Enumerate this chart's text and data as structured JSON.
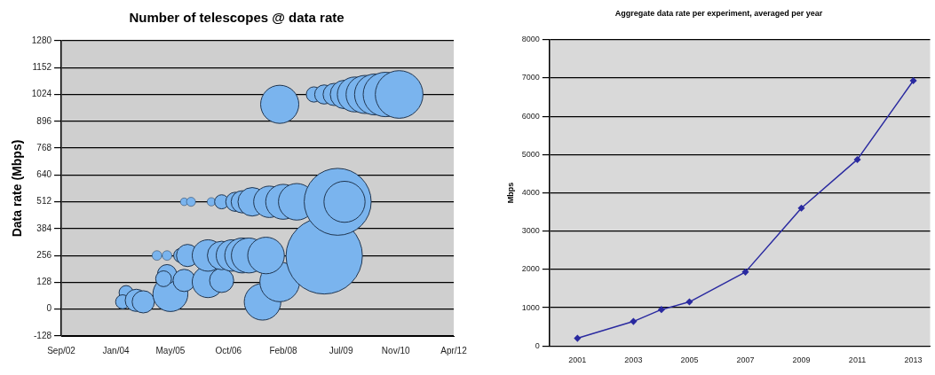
{
  "chart_data": [
    {
      "type": "bubble",
      "title": "Number of telescopes @ data rate",
      "ylabel": "Data rate (Mbps)",
      "xlim": [
        "2002-09",
        "2012-04"
      ],
      "xticks": [
        {
          "value": "2002-09",
          "label": "Sep/02"
        },
        {
          "value": "2004-01",
          "label": "Jan/04"
        },
        {
          "value": "2005-05",
          "label": "May/05"
        },
        {
          "value": "2006-10",
          "label": "Oct/06"
        },
        {
          "value": "2008-02",
          "label": "Feb/08"
        },
        {
          "value": "2009-07",
          "label": "Jul/09"
        },
        {
          "value": "2010-11",
          "label": "Nov/10"
        },
        {
          "value": "2012-04",
          "label": "Apr/12"
        }
      ],
      "ylim": [
        -128,
        1280
      ],
      "yticks": [
        -128,
        0,
        128,
        256,
        384,
        512,
        640,
        768,
        896,
        1024,
        1152,
        1280
      ],
      "grid": "y",
      "legend": false,
      "series": [
        {
          "color": "#7ab4ee",
          "x": [
            "2008-01",
            "2008-11",
            "2009-02",
            "2009-05",
            "2009-08",
            "2009-11",
            "2010-02",
            "2010-05",
            "2010-08",
            "2010-12"
          ],
          "values": [
            977,
            1024,
            1024,
            1024,
            1024,
            1024,
            1024,
            1024,
            1024,
            1024
          ],
          "sizes": [
            0.25,
            0.04,
            0.063,
            0.085,
            0.14,
            0.21,
            0.25,
            0.29,
            0.34,
            0.39
          ]
        },
        {
          "color": "#7ab4ee",
          "x": [
            "2005-09",
            "2005-11",
            "2006-05",
            "2006-08",
            "2006-12",
            "2007-02",
            "2007-05",
            "2007-10",
            "2008-02",
            "2008-06",
            "2009-06",
            "2009-08"
          ],
          "values": [
            512,
            512,
            512,
            512,
            512,
            512,
            512,
            512,
            512,
            512,
            512,
            512
          ],
          "sizes": [
            0.01,
            0.014,
            0.012,
            0.034,
            0.063,
            0.085,
            0.14,
            0.17,
            0.21,
            0.23,
            0.77,
            0.29
          ]
        },
        {
          "color": "#7ab4ee",
          "x": [
            "2005-01",
            "2005-04",
            "2005-08",
            "2005-10",
            "2006-04",
            "2006-08",
            "2006-11",
            "2007-02",
            "2007-04",
            "2007-09",
            "2009-02"
          ],
          "values": [
            256,
            256,
            256,
            256,
            256,
            256,
            256,
            256,
            256,
            256,
            254
          ],
          "sizes": [
            0.016,
            0.016,
            0.034,
            0.085,
            0.17,
            0.14,
            0.17,
            0.21,
            0.21,
            0.23,
            1
          ]
        },
        {
          "color": "#7ab4ee",
          "x": [
            "2004-04",
            "2004-03",
            "2004-07",
            "2004-09",
            "2005-05",
            "2005-04",
            "2005-03",
            "2005-09",
            "2006-04",
            "2006-08",
            "2007-08",
            "2008-01"
          ],
          "values": [
            79,
            35,
            42,
            35,
            72,
            167,
            145,
            137,
            130,
            137,
            35,
            130
          ],
          "sizes": [
            0.034,
            0.034,
            0.085,
            0.085,
            0.21,
            0.063,
            0.043,
            0.085,
            0.17,
            0.1,
            0.23,
            0.27
          ]
        }
      ]
    },
    {
      "type": "line",
      "title": "Aggregate data rate per experiment, averaged per year",
      "ylabel": "Mbps",
      "xlim": [
        2000,
        2013.6
      ],
      "xticks": [
        2001,
        2003,
        2005,
        2007,
        2009,
        2011,
        2013
      ],
      "ylim": [
        0,
        8000
      ],
      "yticks": [
        0,
        1000,
        2000,
        3000,
        4000,
        5000,
        6000,
        7000,
        8000
      ],
      "grid": "y",
      "legend": false,
      "marker": "diamond",
      "series": [
        {
          "color": "#2a2aa0",
          "x": [
            2001,
            2003,
            2004,
            2005,
            2007,
            2009,
            2011,
            2013
          ],
          "values": [
            200,
            640,
            950,
            1150,
            1930,
            3600,
            4870,
            6930
          ]
        }
      ]
    }
  ]
}
